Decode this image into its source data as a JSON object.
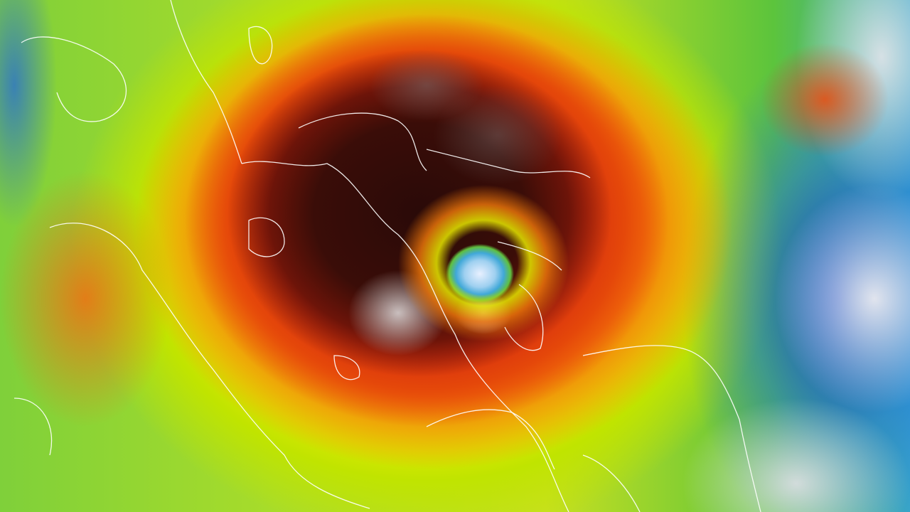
{
  "image": {
    "subject": "typhoon-infrared-satellite",
    "palette": {
      "cold_tops": "#e8e8ec",
      "very_cold": "#2a0a08",
      "red": "#d8300e",
      "orange": "#f57a0a",
      "yellow": "#e8e800",
      "green": "#7fd03a",
      "blue": "#1446c8",
      "coastline": "#ffffff"
    }
  }
}
